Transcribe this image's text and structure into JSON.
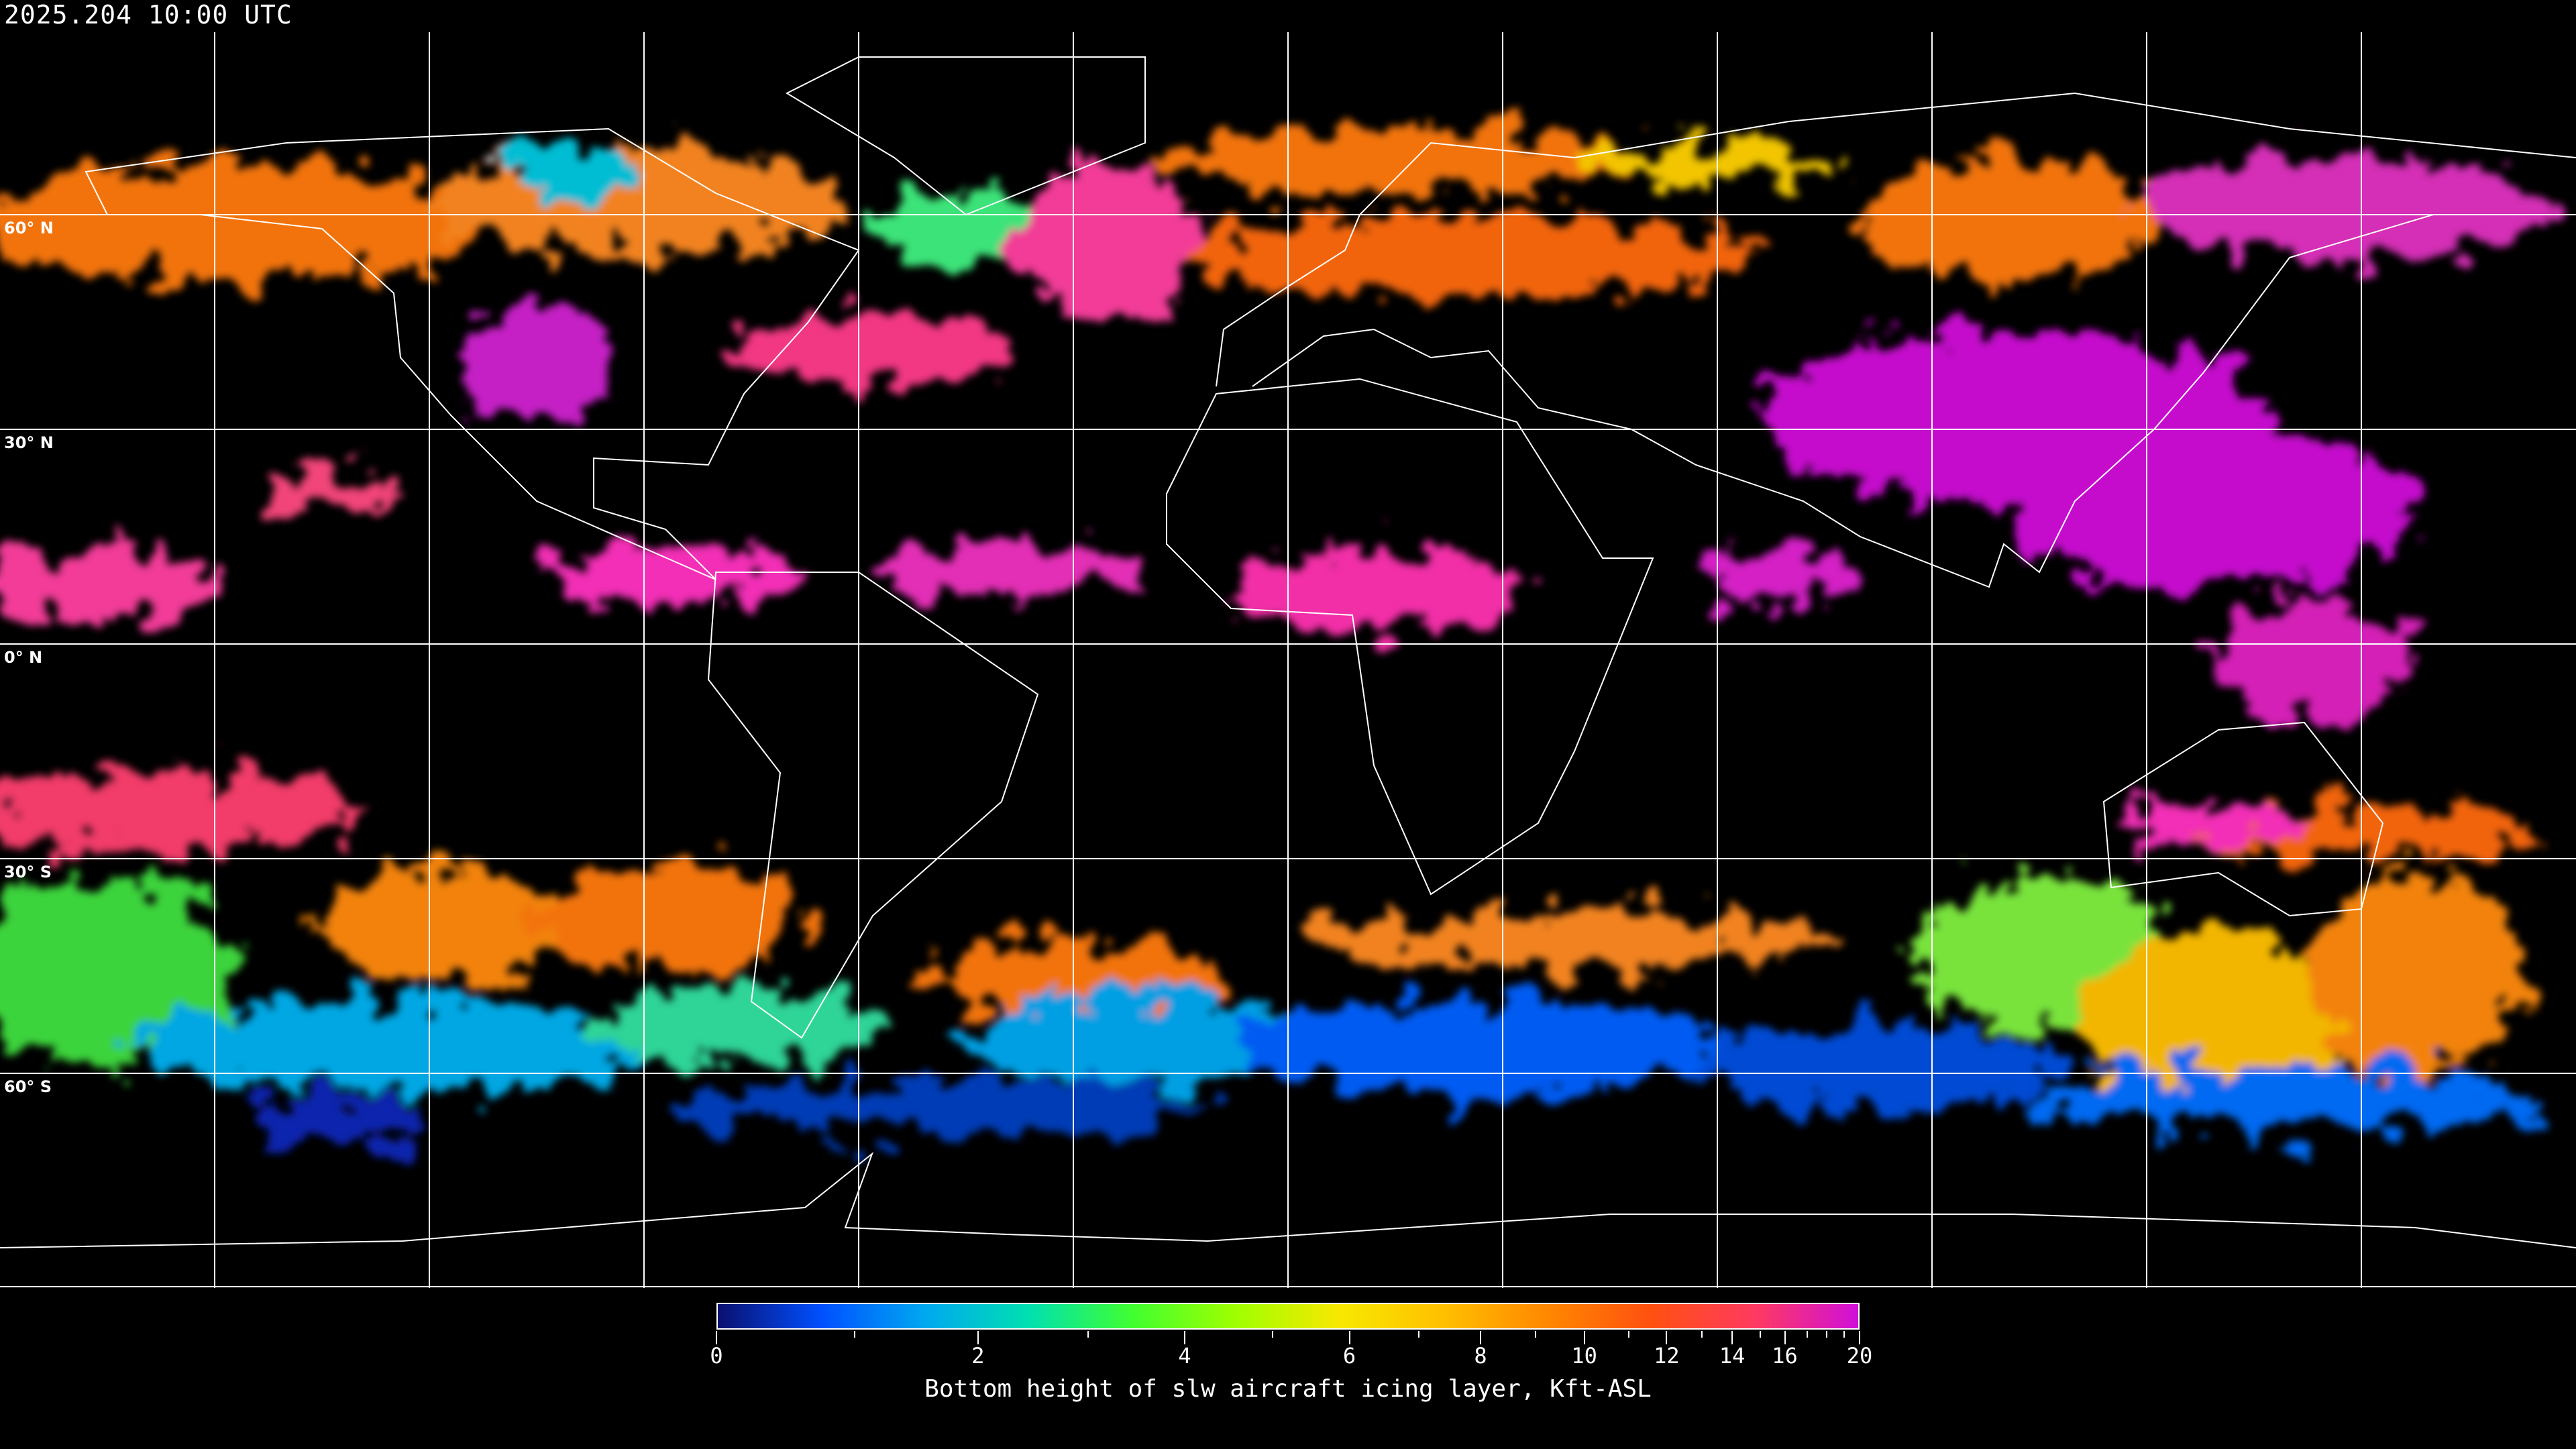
{
  "header": {
    "timestamp": "2025.204 10:00 UTC"
  },
  "map": {
    "projection": "equirectangular",
    "gridlines": true,
    "latitude_labels": [
      "60° N",
      "30° N",
      "0° N",
      "30° S",
      "60° S"
    ],
    "coastline_color": "#ffffff"
  },
  "colorbar": {
    "title": "Bottom height of slw aircraft icing layer, Kft-ASL",
    "min": 0,
    "max": 20,
    "major_ticks": [
      "0",
      "2",
      "4",
      "6",
      "8",
      "10",
      "12",
      "14",
      "16",
      "20"
    ],
    "minor_ticks": [
      1,
      3,
      5,
      7,
      9,
      11,
      13,
      15,
      17,
      18,
      19
    ],
    "colors": [
      "#0a1070",
      "#0050ff",
      "#00a8f0",
      "#00e0b0",
      "#40ff30",
      "#a0ff00",
      "#f8e800",
      "#ffc000",
      "#ff8800",
      "#ff5010",
      "#ff3a60",
      "#d010d8"
    ]
  }
}
